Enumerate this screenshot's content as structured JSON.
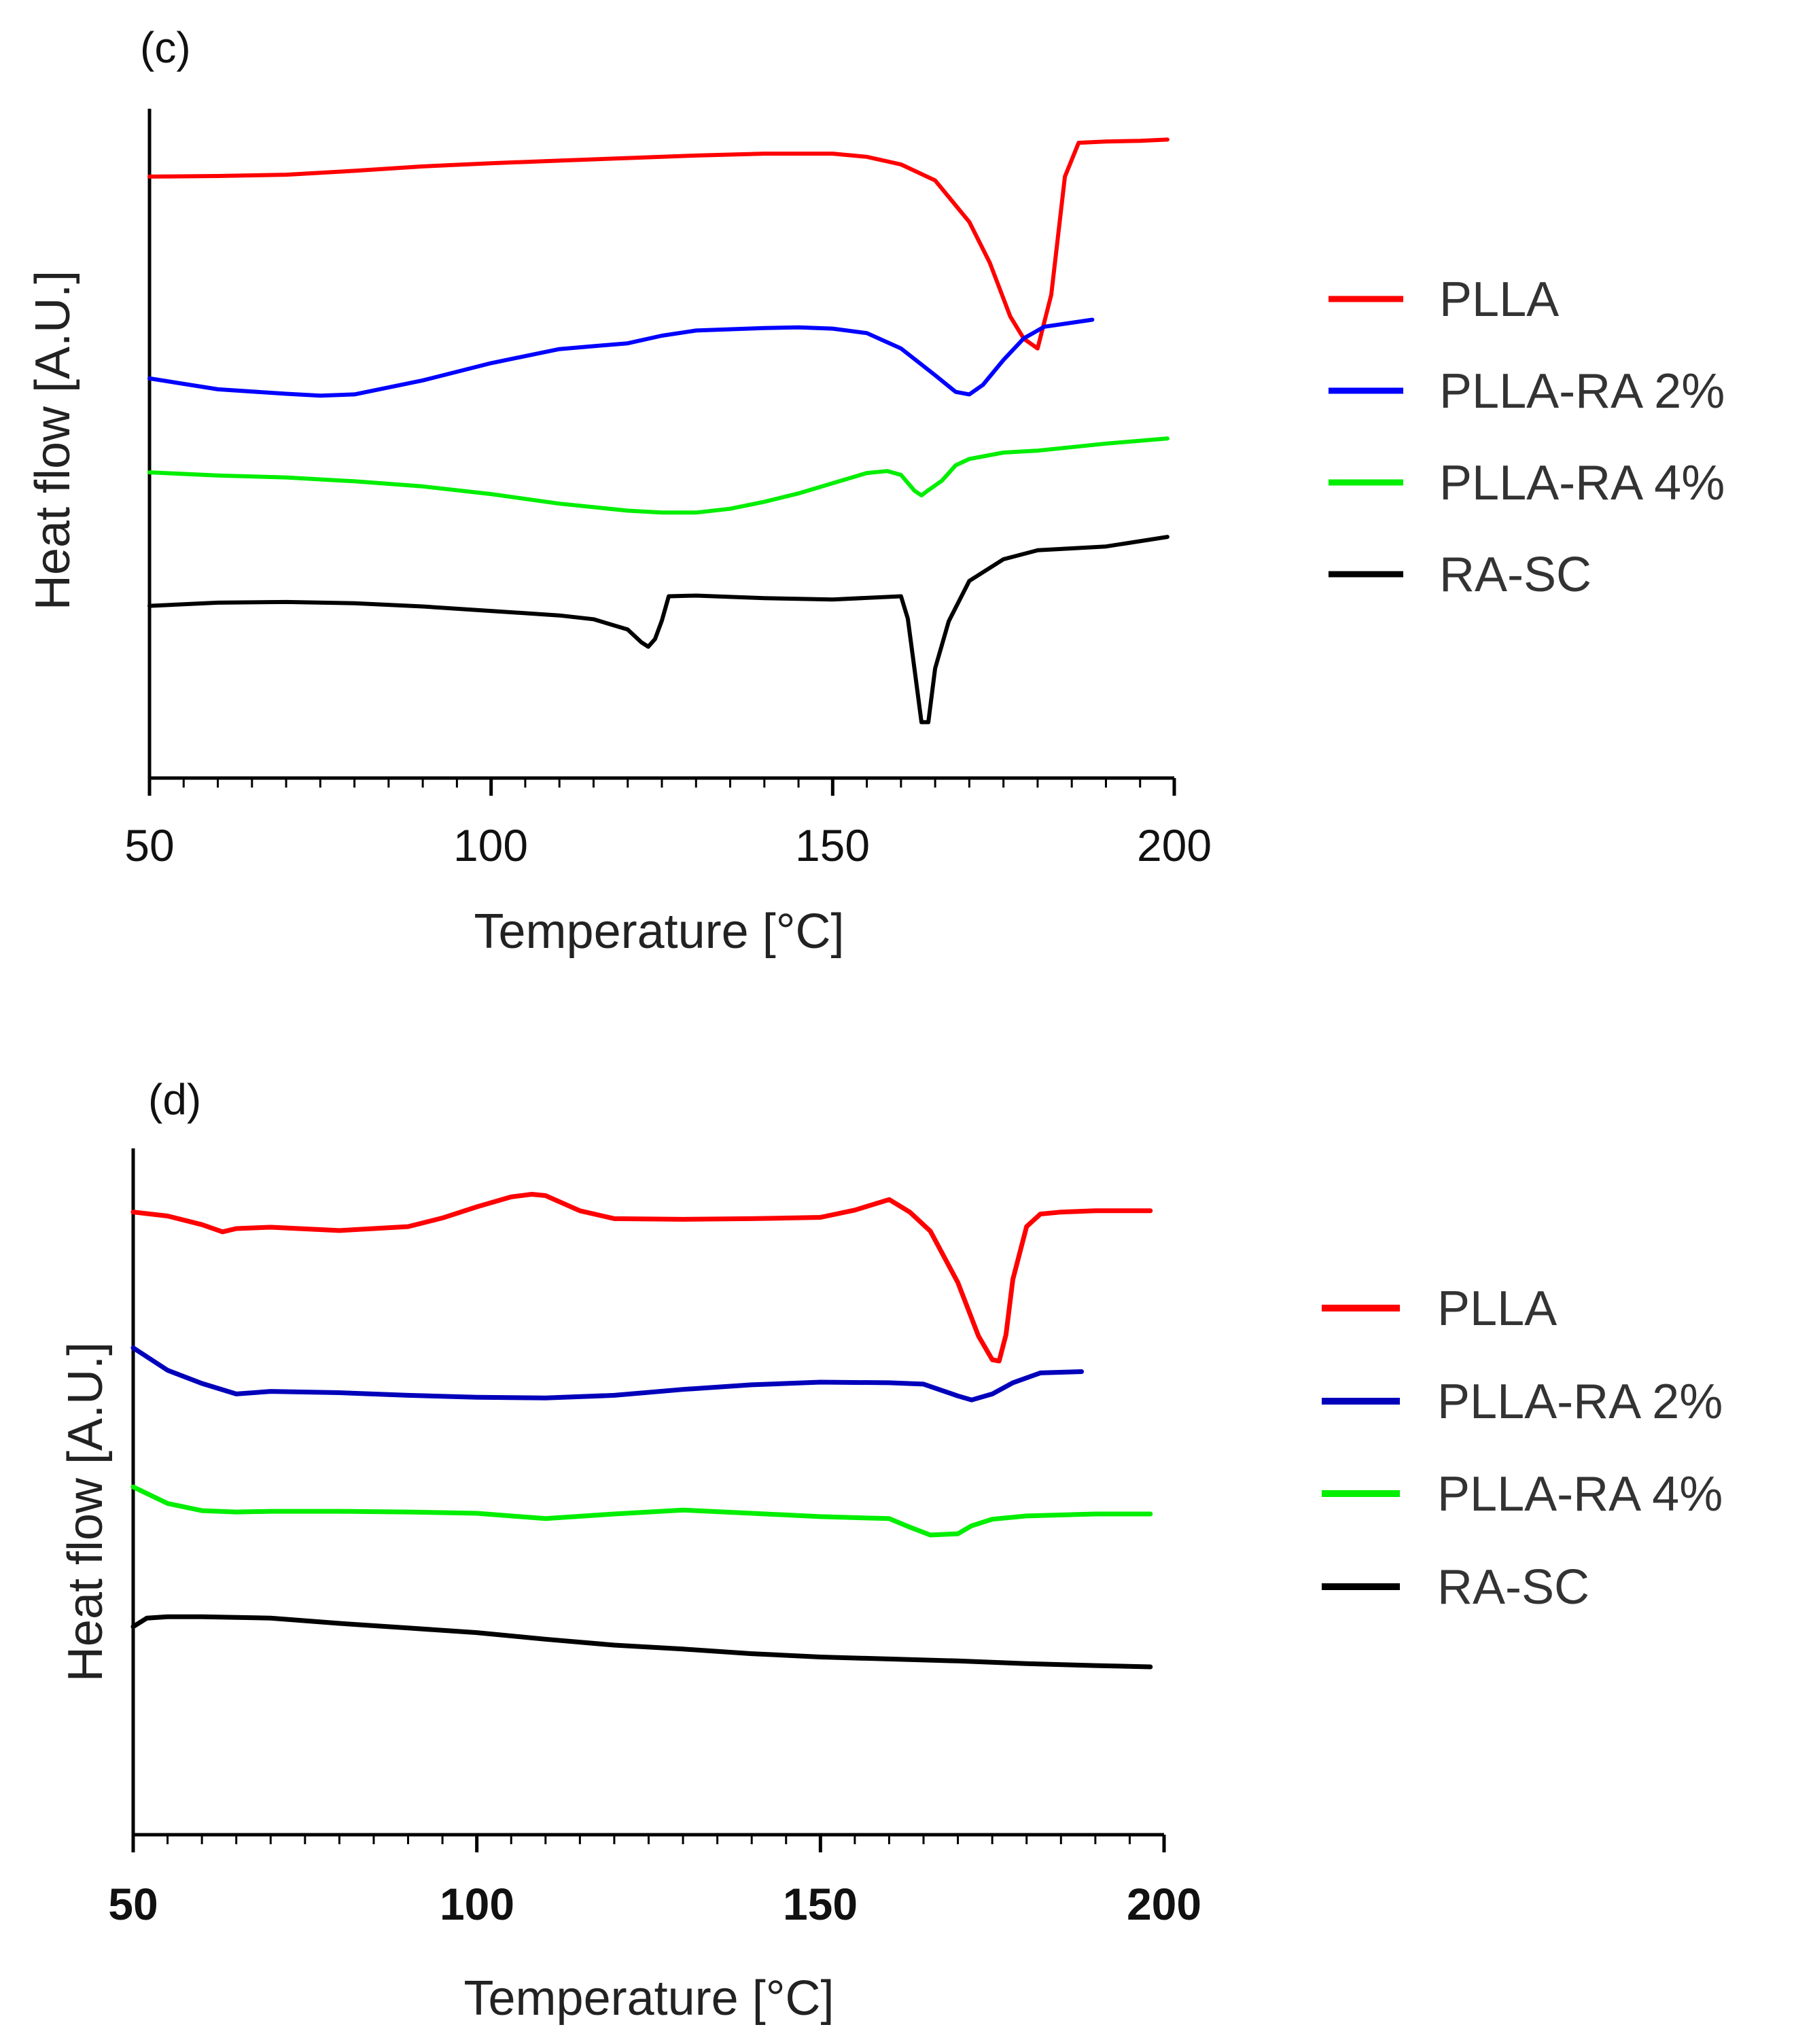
{
  "chart_data": [
    {
      "panel_label": "(c)",
      "type": "line",
      "xlabel": "Temperature [°C]",
      "ylabel": "Heat flow [A.U.]",
      "xlim": [
        50,
        200
      ],
      "ylim": [
        0,
        100
      ],
      "xticks": [
        50,
        100,
        150,
        200
      ],
      "yticks_shown": false,
      "legend_position": "right",
      "series": [
        {
          "name": "PLLA",
          "color": "#ff0000",
          "x": [
            50,
            60,
            70,
            80,
            90,
            100,
            110,
            120,
            130,
            140,
            150,
            155,
            160,
            165,
            170,
            173,
            176,
            178,
            180,
            182,
            184,
            186,
            190,
            195,
            199
          ],
          "y": [
            91.5,
            91.6,
            91.8,
            92.4,
            93.1,
            93.6,
            94.0,
            94.4,
            94.8,
            95.1,
            95.1,
            94.6,
            93.4,
            90.9,
            84.4,
            78.0,
            69.6,
            66.1,
            64.6,
            73.0,
            91.5,
            96.8,
            97.0,
            97.1,
            97.3
          ]
        },
        {
          "name": "PLLA-RA 2%",
          "color": "#0000ff",
          "x": [
            50,
            60,
            70,
            75,
            80,
            90,
            100,
            110,
            120,
            125,
            130,
            140,
            145,
            150,
            155,
            160,
            165,
            168,
            170,
            172,
            175,
            178,
            181,
            188
          ],
          "y": [
            59.9,
            58.2,
            57.5,
            57.2,
            57.4,
            59.6,
            62.3,
            64.5,
            65.4,
            66.6,
            67.4,
            67.8,
            67.9,
            67.7,
            67.0,
            64.6,
            60.4,
            57.8,
            57.4,
            58.9,
            62.8,
            66.2,
            68.0,
            69.1
          ]
        },
        {
          "name": "PLLA-RA 4%",
          "color": "#00ee00",
          "x": [
            50,
            60,
            70,
            80,
            90,
            100,
            110,
            120,
            125,
            130,
            135,
            140,
            145,
            150,
            155,
            158,
            160,
            162,
            163,
            164,
            166,
            168,
            170,
            175,
            180,
            190,
            199
          ],
          "y": [
            45.2,
            44.7,
            44.4,
            43.8,
            43.0,
            41.8,
            40.3,
            39.2,
            38.9,
            38.9,
            39.5,
            40.6,
            41.9,
            43.5,
            45.1,
            45.4,
            44.8,
            42.3,
            41.6,
            42.4,
            43.9,
            46.3,
            47.3,
            48.3,
            48.6,
            49.7,
            50.5
          ]
        },
        {
          "name": "RA-SC",
          "color": "#000000",
          "x": [
            50,
            60,
            70,
            80,
            90,
            100,
            110,
            115,
            120,
            122,
            123,
            124,
            125,
            126,
            130,
            140,
            150,
            160,
            161,
            162,
            163,
            164,
            165,
            167,
            170,
            175,
            180,
            190,
            199
          ],
          "y": [
            24.3,
            24.8,
            24.9,
            24.7,
            24.2,
            23.5,
            22.8,
            22.2,
            20.6,
            18.6,
            17.9,
            19.1,
            22.0,
            25.8,
            25.9,
            25.5,
            25.3,
            25.8,
            22.3,
            14.2,
            6.1,
            6.1,
            14.5,
            21.9,
            28.2,
            31.6,
            33.0,
            33.6,
            35.1
          ]
        }
      ]
    },
    {
      "panel_label": "(d)",
      "type": "line",
      "xlabel": "Temperature [°C]",
      "ylabel": "Heat flow [A.U.]",
      "xlim": [
        50,
        200
      ],
      "ylim": [
        0,
        100
      ],
      "xticks": [
        50,
        100,
        150,
        200
      ],
      "yticks_shown": false,
      "legend_position": "right",
      "series": [
        {
          "name": "PLLA",
          "color": "#ff0000",
          "x": [
            50,
            55,
            60,
            63,
            65,
            70,
            80,
            90,
            95,
            100,
            105,
            108,
            110,
            115,
            120,
            130,
            140,
            150,
            155,
            160,
            163,
            166,
            170,
            173,
            175,
            176,
            177,
            178,
            180,
            182,
            185,
            190,
            198
          ],
          "y": [
            92.4,
            91.8,
            90.5,
            89.4,
            89.9,
            90.1,
            89.6,
            90.2,
            91.5,
            93.2,
            94.7,
            95.1,
            94.9,
            92.6,
            91.4,
            91.3,
            91.4,
            91.6,
            92.7,
            94.3,
            92.4,
            89.5,
            81.7,
            73.6,
            70.0,
            69.8,
            73.8,
            82.2,
            90.2,
            92.1,
            92.4,
            92.6,
            92.6
          ]
        },
        {
          "name": "PLLA-RA 2%",
          "color": "#0000bb",
          "x": [
            50,
            55,
            60,
            65,
            70,
            80,
            90,
            100,
            110,
            120,
            130,
            140,
            150,
            160,
            165,
            170,
            172,
            175,
            178,
            182,
            188
          ],
          "y": [
            71.8,
            68.4,
            66.4,
            64.8,
            65.2,
            65.0,
            64.6,
            64.3,
            64.2,
            64.6,
            65.5,
            66.2,
            66.6,
            66.5,
            66.3,
            64.5,
            63.9,
            64.8,
            66.5,
            68.0,
            68.2
          ]
        },
        {
          "name": "PLLA-RA 4%",
          "color": "#00ee00",
          "x": [
            50,
            55,
            60,
            65,
            70,
            80,
            90,
            100,
            110,
            120,
            130,
            140,
            150,
            160,
            163,
            166,
            170,
            172,
            175,
            180,
            190,
            198
          ],
          "y": [
            50.7,
            48.2,
            47.1,
            46.9,
            47.0,
            47.0,
            46.9,
            46.7,
            45.9,
            46.6,
            47.2,
            46.7,
            46.2,
            45.9,
            44.6,
            43.4,
            43.6,
            44.8,
            45.8,
            46.3,
            46.6,
            46.6
          ]
        },
        {
          "name": "RA-SC",
          "color": "#000000",
          "x": [
            50,
            52,
            55,
            60,
            70,
            80,
            90,
            100,
            110,
            120,
            130,
            140,
            150,
            160,
            170,
            180,
            190,
            198
          ],
          "y": [
            29.5,
            30.8,
            31.0,
            31.0,
            30.8,
            30.0,
            29.3,
            28.6,
            27.6,
            26.7,
            26.1,
            25.4,
            24.9,
            24.6,
            24.3,
            23.9,
            23.6,
            23.4
          ]
        }
      ]
    }
  ]
}
